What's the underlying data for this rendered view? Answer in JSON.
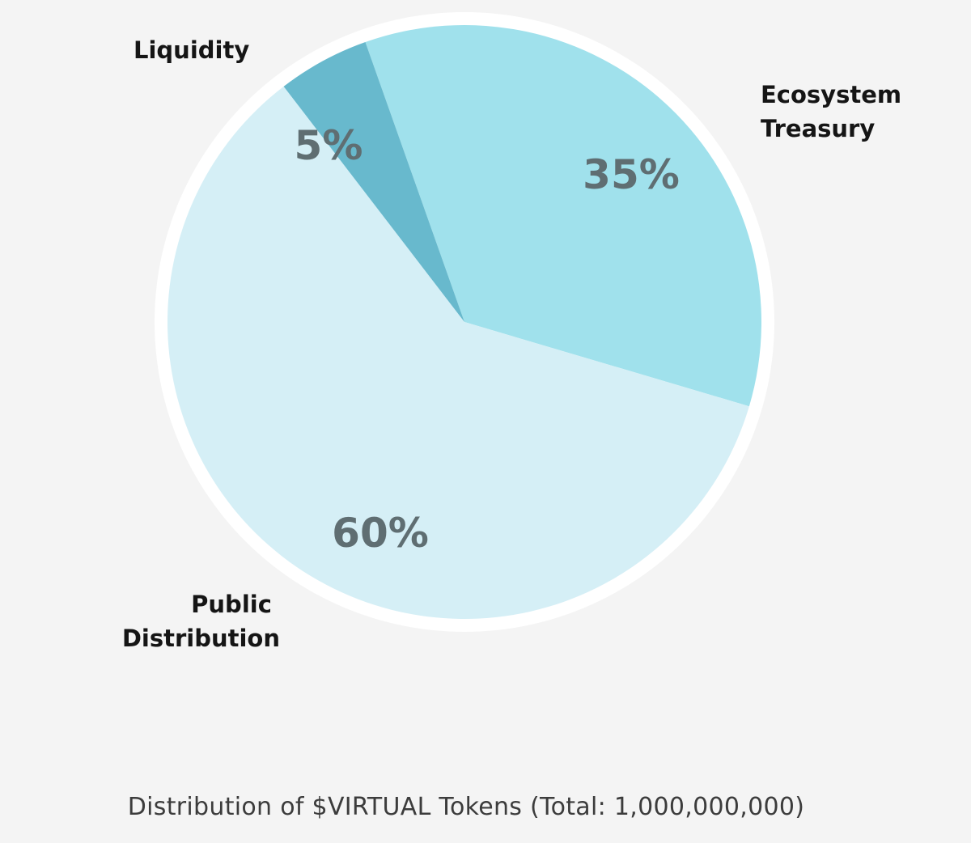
{
  "chart_data": {
    "type": "pie",
    "caption": "Distribution of $VIRTUAL Tokens (Total: 1,000,000,000)",
    "slices": [
      {
        "name": "Ecosystem Treasury",
        "value": 35,
        "label": "35%",
        "color": "#a0e1ec"
      },
      {
        "name": "Public Distribution",
        "value": 60,
        "label": "60%",
        "color": "#d5eff6"
      },
      {
        "name": "Liquidity",
        "value": 5,
        "label": "5%",
        "color": "#68b9cd"
      }
    ],
    "border_color": "#ffffff",
    "legend": "none"
  }
}
